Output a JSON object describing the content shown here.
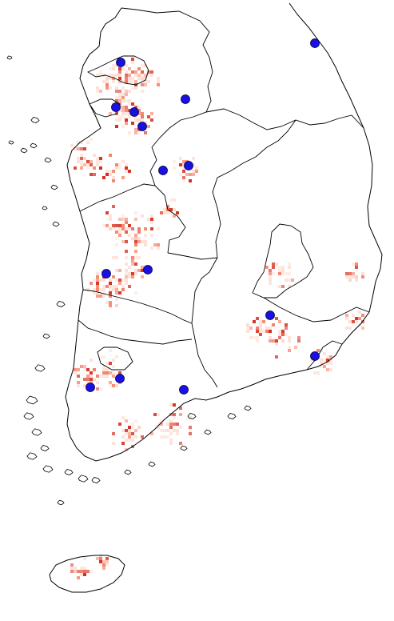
{
  "map": {
    "type": "choropleth-density-with-markers",
    "labels": [],
    "colors": {
      "background": "#ffffff",
      "land": "#ffffff",
      "border": "#000000",
      "heat_low": "#fde0d6",
      "heat_mid": "#f4846a",
      "heat_high": "#d42a1c",
      "marker_fill": "#1a10e6",
      "marker_stroke": "#000033"
    },
    "marker_count": 16,
    "regions": [
      "mainland",
      "jeju-island",
      "west-coast-islands",
      "south-coast-islands"
    ]
  }
}
